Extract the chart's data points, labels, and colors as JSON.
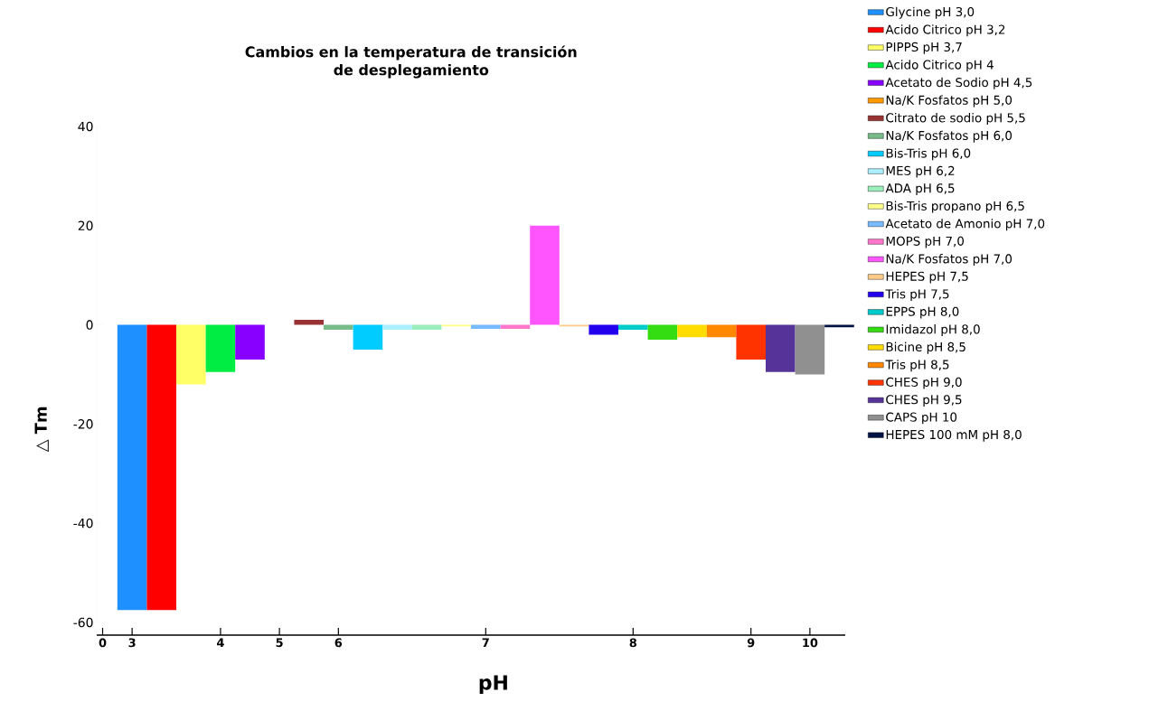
{
  "chart_data": {
    "type": "bar",
    "title": "Cambios en la temperatura de transición\nde desplegamiento",
    "xlabel": "pH",
    "ylabel": "△ Tm",
    "categories": [
      "0",
      "3",
      null,
      null,
      "4",
      null,
      "5",
      null,
      "6",
      null,
      null,
      null,
      null,
      "7",
      null,
      null,
      null,
      null,
      "8",
      null,
      null,
      null,
      "9",
      null,
      "10",
      null
    ],
    "ylim": [
      -60,
      40
    ],
    "yticks": [
      -60,
      -40,
      -20,
      0,
      20,
      40
    ],
    "grid": false,
    "legend": "right",
    "series": [
      {
        "name": "Glycine  pH 3,0",
        "color": "#1e90ff",
        "values": [
          null,
          -57.5,
          null,
          null,
          null,
          null,
          null,
          null,
          null,
          null,
          null,
          null,
          null,
          null,
          null,
          null,
          null,
          null,
          null,
          null,
          null,
          null,
          null,
          null,
          null,
          null
        ]
      },
      {
        "name": "Acido Citrico pH 3,2",
        "color": "#ff0000",
        "values": [
          null,
          null,
          -57.5,
          null,
          null,
          null,
          null,
          null,
          null,
          null,
          null,
          null,
          null,
          null,
          null,
          null,
          null,
          null,
          null,
          null,
          null,
          null,
          null,
          null,
          null,
          null
        ]
      },
      {
        "name": "PIPPS pH 3,7",
        "color": "#ffff66",
        "values": [
          null,
          null,
          null,
          -12,
          null,
          null,
          null,
          null,
          null,
          null,
          null,
          null,
          null,
          null,
          null,
          null,
          null,
          null,
          null,
          null,
          null,
          null,
          null,
          null,
          null,
          null
        ]
      },
      {
        "name": "Acido Citrico pH 4",
        "color": "#00ee44",
        "values": [
          null,
          null,
          null,
          null,
          -9.5,
          null,
          null,
          null,
          null,
          null,
          null,
          null,
          null,
          null,
          null,
          null,
          null,
          null,
          null,
          null,
          null,
          null,
          null,
          null,
          null,
          null
        ]
      },
      {
        "name": "Acetato de Sodio pH 4,5",
        "color": "#8800ff",
        "values": [
          null,
          null,
          null,
          null,
          null,
          -7,
          null,
          null,
          null,
          null,
          null,
          null,
          null,
          null,
          null,
          null,
          null,
          null,
          null,
          null,
          null,
          null,
          null,
          null,
          null,
          null
        ]
      },
      {
        "name": "Na/K Fosfatos pH 5,0",
        "color": "#ff9900",
        "values": [
          null,
          null,
          null,
          null,
          null,
          null,
          0,
          null,
          null,
          null,
          null,
          null,
          null,
          null,
          null,
          null,
          null,
          null,
          null,
          null,
          null,
          null,
          null,
          null,
          null,
          null
        ]
      },
      {
        "name": "Citrato de sodio pH 5,5",
        "color": "#993333",
        "values": [
          null,
          null,
          null,
          null,
          null,
          null,
          null,
          1,
          null,
          null,
          null,
          null,
          null,
          null,
          null,
          null,
          null,
          null,
          null,
          null,
          null,
          null,
          null,
          null,
          null,
          null
        ]
      },
      {
        "name": "Na/K Fosfatos pH 6,0",
        "color": "#77bb88",
        "values": [
          null,
          null,
          null,
          null,
          null,
          null,
          null,
          null,
          -1,
          null,
          null,
          null,
          null,
          null,
          null,
          null,
          null,
          null,
          null,
          null,
          null,
          null,
          null,
          null,
          null,
          null
        ]
      },
      {
        "name": "Bis-Tris pH 6,0",
        "color": "#00ccff",
        "values": [
          null,
          null,
          null,
          null,
          null,
          null,
          null,
          null,
          null,
          -5,
          null,
          null,
          null,
          null,
          null,
          null,
          null,
          null,
          null,
          null,
          null,
          null,
          null,
          null,
          null,
          null
        ]
      },
      {
        "name": "MES pH 6,2",
        "color": "#aaf0ff",
        "values": [
          null,
          null,
          null,
          null,
          null,
          null,
          null,
          null,
          null,
          null,
          -1,
          null,
          null,
          null,
          null,
          null,
          null,
          null,
          null,
          null,
          null,
          null,
          null,
          null,
          null,
          null
        ]
      },
      {
        "name": "ADA pH 6,5",
        "color": "#99eebb",
        "values": [
          null,
          null,
          null,
          null,
          null,
          null,
          null,
          null,
          null,
          null,
          null,
          -1,
          null,
          null,
          null,
          null,
          null,
          null,
          null,
          null,
          null,
          null,
          null,
          null,
          null,
          null
        ]
      },
      {
        "name": "Bis-Tris propano pH 6,5",
        "color": "#ffff88",
        "values": [
          null,
          null,
          null,
          null,
          null,
          null,
          null,
          null,
          null,
          null,
          null,
          null,
          -0.3,
          null,
          null,
          null,
          null,
          null,
          null,
          null,
          null,
          null,
          null,
          null,
          null,
          null
        ]
      },
      {
        "name": "Acetato de Amonio pH 7,0",
        "color": "#77bbff",
        "values": [
          null,
          null,
          null,
          null,
          null,
          null,
          null,
          null,
          null,
          null,
          null,
          null,
          null,
          -0.8,
          null,
          null,
          null,
          null,
          null,
          null,
          null,
          null,
          null,
          null,
          null,
          null
        ]
      },
      {
        "name": "MOPS pH 7,0",
        "color": "#ff77cc",
        "values": [
          null,
          null,
          null,
          null,
          null,
          null,
          null,
          null,
          null,
          null,
          null,
          null,
          null,
          null,
          -0.8,
          null,
          null,
          null,
          null,
          null,
          null,
          null,
          null,
          null,
          null,
          null
        ]
      },
      {
        "name": "Na/K Fosfatos pH 7,0",
        "color": "#ff55ff",
        "values": [
          null,
          null,
          null,
          null,
          null,
          null,
          null,
          null,
          null,
          null,
          null,
          null,
          null,
          null,
          null,
          20,
          null,
          null,
          null,
          null,
          null,
          null,
          null,
          null,
          null,
          null
        ]
      },
      {
        "name": "HEPES pH 7,5",
        "color": "#ffcc88",
        "values": [
          null,
          null,
          null,
          null,
          null,
          null,
          null,
          null,
          null,
          null,
          null,
          null,
          null,
          null,
          null,
          null,
          -0.3,
          null,
          null,
          null,
          null,
          null,
          null,
          null,
          null,
          null
        ]
      },
      {
        "name": "Tris pH 7,5",
        "color": "#2200ee",
        "values": [
          null,
          null,
          null,
          null,
          null,
          null,
          null,
          null,
          null,
          null,
          null,
          null,
          null,
          null,
          null,
          null,
          null,
          -2,
          null,
          null,
          null,
          null,
          null,
          null,
          null,
          null
        ]
      },
      {
        "name": "EPPS pH 8,0",
        "color": "#00cccc",
        "values": [
          null,
          null,
          null,
          null,
          null,
          null,
          null,
          null,
          null,
          null,
          null,
          null,
          null,
          null,
          null,
          null,
          null,
          null,
          -1,
          null,
          null,
          null,
          null,
          null,
          null,
          null
        ]
      },
      {
        "name": "Imidazol pH 8,0",
        "color": "#33dd11",
        "values": [
          null,
          null,
          null,
          null,
          null,
          null,
          null,
          null,
          null,
          null,
          null,
          null,
          null,
          null,
          null,
          null,
          null,
          null,
          null,
          -3,
          null,
          null,
          null,
          null,
          null,
          null
        ]
      },
      {
        "name": "Bicine pH 8,5",
        "color": "#ffdd00",
        "values": [
          null,
          null,
          null,
          null,
          null,
          null,
          null,
          null,
          null,
          null,
          null,
          null,
          null,
          null,
          null,
          null,
          null,
          null,
          null,
          null,
          -2.5,
          null,
          null,
          null,
          null,
          null
        ]
      },
      {
        "name": "Tris pH 8,5",
        "color": "#ff8800",
        "values": [
          null,
          null,
          null,
          null,
          null,
          null,
          null,
          null,
          null,
          null,
          null,
          null,
          null,
          null,
          null,
          null,
          null,
          null,
          null,
          null,
          null,
          -2.5,
          null,
          null,
          null,
          null
        ]
      },
      {
        "name": "CHES pH 9,0",
        "color": "#ff3300",
        "values": [
          null,
          null,
          null,
          null,
          null,
          null,
          null,
          null,
          null,
          null,
          null,
          null,
          null,
          null,
          null,
          null,
          null,
          null,
          null,
          null,
          null,
          null,
          -7,
          null,
          null,
          null
        ]
      },
      {
        "name": "CHES pH 9,5",
        "color": "#553399",
        "values": [
          null,
          null,
          null,
          null,
          null,
          null,
          null,
          null,
          null,
          null,
          null,
          null,
          null,
          null,
          null,
          null,
          null,
          null,
          null,
          null,
          null,
          null,
          null,
          -9.5,
          null,
          null
        ]
      },
      {
        "name": "CAPS pH 10",
        "color": "#909090",
        "values": [
          null,
          null,
          null,
          null,
          null,
          null,
          null,
          null,
          null,
          null,
          null,
          null,
          null,
          null,
          null,
          null,
          null,
          null,
          null,
          null,
          null,
          null,
          null,
          null,
          -10,
          null
        ]
      },
      {
        "name": "HEPES 100 mM pH 8,0",
        "color": "#001144",
        "values": [
          null,
          null,
          null,
          null,
          null,
          null,
          null,
          null,
          null,
          null,
          null,
          null,
          null,
          null,
          null,
          null,
          null,
          null,
          null,
          null,
          null,
          null,
          null,
          null,
          null,
          -0.5
        ]
      }
    ]
  }
}
